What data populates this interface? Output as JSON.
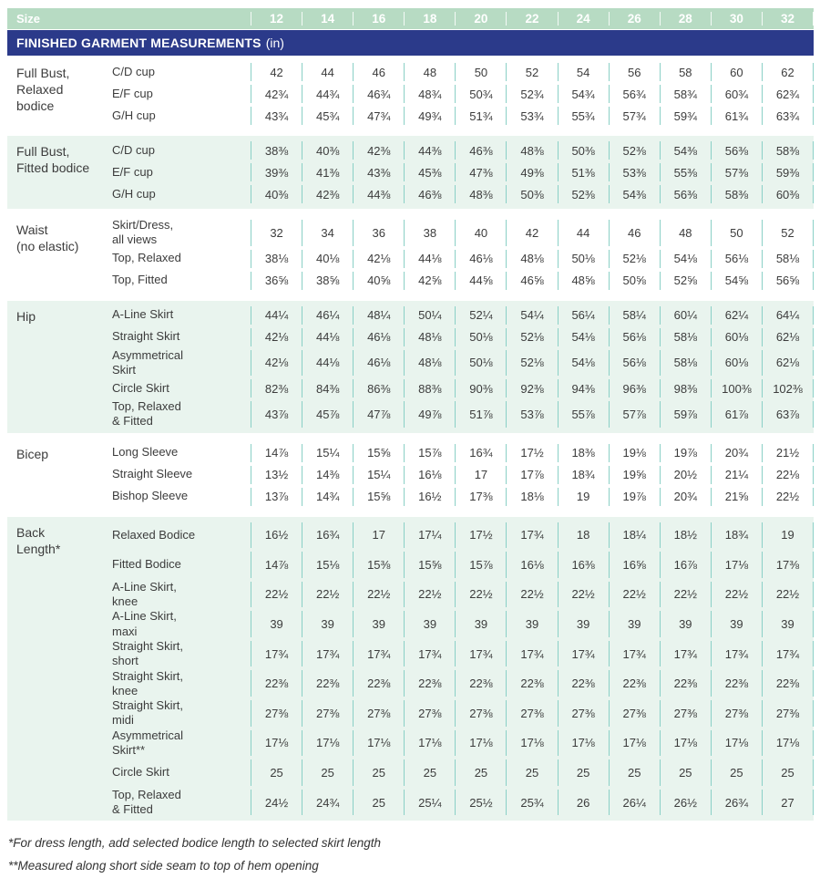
{
  "colors": {
    "header_green": "#b7dbc3",
    "banner_navy": "#2b3a8a",
    "section_mint": "#e9f4ee",
    "divider_teal": "#8ad0c6"
  },
  "size_header": {
    "label": "Size",
    "sizes": [
      "12",
      "14",
      "16",
      "18",
      "20",
      "22",
      "24",
      "26",
      "28",
      "30",
      "32"
    ]
  },
  "banner": {
    "title": "FINISHED GARMENT MEASUREMENTS",
    "unit": "(in)"
  },
  "sections": [
    {
      "label": "Full Bust,\nRelaxed\nbodice",
      "rows": [
        {
          "label": "C/D cup",
          "values": [
            "42",
            "44",
            "46",
            "48",
            "50",
            "52",
            "54",
            "56",
            "58",
            "60",
            "62"
          ]
        },
        {
          "label": "E/F cup",
          "values": [
            "42¾",
            "44¾",
            "46¾",
            "48¾",
            "50¾",
            "52¾",
            "54¾",
            "56¾",
            "58¾",
            "60¾",
            "62¾"
          ]
        },
        {
          "label": "G/H cup",
          "values": [
            "43¾",
            "45¾",
            "47¾",
            "49¾",
            "51¾",
            "53¾",
            "55¾",
            "57¾",
            "59¾",
            "61¾",
            "63¾"
          ]
        }
      ]
    },
    {
      "label": "Full Bust,\nFitted bodice",
      "rows": [
        {
          "label": "C/D cup",
          "values": [
            "38⅜",
            "40⅜",
            "42⅜",
            "44⅜",
            "46⅜",
            "48⅜",
            "50⅜",
            "52⅜",
            "54⅜",
            "56⅜",
            "58⅜"
          ]
        },
        {
          "label": "E/F cup",
          "values": [
            "39⅜",
            "41⅜",
            "43⅜",
            "45⅜",
            "47⅜",
            "49⅜",
            "51⅜",
            "53⅜",
            "55⅜",
            "57⅜",
            "59⅜"
          ]
        },
        {
          "label": "G/H cup",
          "values": [
            "40⅜",
            "42⅜",
            "44⅜",
            "46⅜",
            "48⅜",
            "50⅜",
            "52⅜",
            "54⅜",
            "56⅜",
            "58⅜",
            "60⅜"
          ]
        }
      ]
    },
    {
      "label": "Waist\n(no elastic)",
      "rows": [
        {
          "label": "Skirt/Dress,\nall views",
          "values": [
            "32",
            "34",
            "36",
            "38",
            "40",
            "42",
            "44",
            "46",
            "48",
            "50",
            "52"
          ]
        },
        {
          "label": "Top, Relaxed",
          "values": [
            "38⅛",
            "40⅛",
            "42⅛",
            "44⅛",
            "46⅛",
            "48⅛",
            "50⅛",
            "52⅛",
            "54⅛",
            "56⅛",
            "58⅛"
          ]
        },
        {
          "label": "Top, Fitted",
          "values": [
            "36⅝",
            "38⅝",
            "40⅝",
            "42⅝",
            "44⅝",
            "46⅝",
            "48⅝",
            "50⅝",
            "52⅝",
            "54⅝",
            "56⅝"
          ]
        }
      ]
    },
    {
      "label": "Hip",
      "rows": [
        {
          "label": "A-Line Skirt",
          "values": [
            "44¼",
            "46¼",
            "48¼",
            "50¼",
            "52¼",
            "54¼",
            "56¼",
            "58¼",
            "60¼",
            "62¼",
            "64¼"
          ]
        },
        {
          "label": "Straight Skirt",
          "values": [
            "42⅛",
            "44⅛",
            "46⅛",
            "48⅛",
            "50⅛",
            "52⅛",
            "54⅛",
            "56⅛",
            "58⅛",
            "60⅛",
            "62⅛"
          ]
        },
        {
          "label": "Asymmetrical\nSkirt",
          "values": [
            "42⅛",
            "44⅛",
            "46⅛",
            "48⅛",
            "50⅛",
            "52⅛",
            "54⅛",
            "56⅛",
            "58⅛",
            "60⅛",
            "62⅛"
          ]
        },
        {
          "label": "Circle Skirt",
          "values": [
            "82⅜",
            "84⅜",
            "86⅜",
            "88⅜",
            "90⅜",
            "92⅜",
            "94⅜",
            "96⅜",
            "98⅜",
            "100⅜",
            "102⅜"
          ]
        },
        {
          "label": "Top, Relaxed\n& Fitted",
          "values": [
            "43⅞",
            "45⅞",
            "47⅞",
            "49⅞",
            "51⅞",
            "53⅞",
            "55⅞",
            "57⅞",
            "59⅞",
            "61⅞",
            "63⅞"
          ]
        }
      ]
    },
    {
      "label": "Bicep",
      "rows": [
        {
          "label": "Long Sleeve",
          "values": [
            "14⅞",
            "15¼",
            "15⅝",
            "15⅞",
            "16¾",
            "17½",
            "18⅜",
            "19⅛",
            "19⅞",
            "20¾",
            "21½"
          ]
        },
        {
          "label": "Straight Sleeve",
          "values": [
            "13½",
            "14⅜",
            "15¼",
            "16⅛",
            "17",
            "17⅞",
            "18¾",
            "19⅝",
            "20½",
            "21¼",
            "22⅛"
          ]
        },
        {
          "label": "Bishop Sleeve",
          "values": [
            "13⅞",
            "14¾",
            "15⅝",
            "16½",
            "17⅜",
            "18⅛",
            "19",
            "19⅞",
            "20¾",
            "21⅝",
            "22½"
          ]
        }
      ]
    },
    {
      "label": "Back\nLength*",
      "rows": [
        {
          "label": "Relaxed Bodice",
          "values": [
            "16½",
            "16¾",
            "17",
            "17¼",
            "17½",
            "17¾",
            "18",
            "18¼",
            "18½",
            "18¾",
            "19"
          ]
        },
        {
          "label": "Fitted Bodice",
          "values": [
            "14⅞",
            "15⅛",
            "15⅜",
            "15⅝",
            "15⅞",
            "16⅛",
            "16⅜",
            "16⅝",
            "16⅞",
            "17⅛",
            "17⅜"
          ]
        },
        {
          "label": "A-Line Skirt,\nknee",
          "values": [
            "22½",
            "22½",
            "22½",
            "22½",
            "22½",
            "22½",
            "22½",
            "22½",
            "22½",
            "22½",
            "22½"
          ]
        },
        {
          "label": "A-Line Skirt,\nmaxi",
          "values": [
            "39",
            "39",
            "39",
            "39",
            "39",
            "39",
            "39",
            "39",
            "39",
            "39",
            "39"
          ]
        },
        {
          "label": "Straight Skirt,\nshort",
          "values": [
            "17¾",
            "17¾",
            "17¾",
            "17¾",
            "17¾",
            "17¾",
            "17¾",
            "17¾",
            "17¾",
            "17¾",
            "17¾"
          ]
        },
        {
          "label": "Straight Skirt,\nknee",
          "values": [
            "22⅜",
            "22⅜",
            "22⅜",
            "22⅜",
            "22⅜",
            "22⅜",
            "22⅜",
            "22⅜",
            "22⅜",
            "22⅜",
            "22⅜"
          ]
        },
        {
          "label": "Straight Skirt,\nmidi",
          "values": [
            "27⅜",
            "27⅜",
            "27⅜",
            "27⅜",
            "27⅜",
            "27⅜",
            "27⅜",
            "27⅜",
            "27⅜",
            "27⅜",
            "27⅜"
          ]
        },
        {
          "label": "Asymmetrical\nSkirt**",
          "values": [
            "17⅛",
            "17⅛",
            "17⅛",
            "17⅛",
            "17⅛",
            "17⅛",
            "17⅛",
            "17⅛",
            "17⅛",
            "17⅛",
            "17⅛"
          ]
        },
        {
          "label": "Circle Skirt",
          "values": [
            "25",
            "25",
            "25",
            "25",
            "25",
            "25",
            "25",
            "25",
            "25",
            "25",
            "25"
          ]
        },
        {
          "label": "Top, Relaxed\n& Fitted",
          "values": [
            "24½",
            "24¾",
            "25",
            "25¼",
            "25½",
            "25¾",
            "26",
            "26¼",
            "26½",
            "26¾",
            "27"
          ]
        }
      ]
    }
  ],
  "footnotes": [
    "*For dress length, add selected bodice length to selected skirt length",
    "**Measured along short side seam to top of hem opening"
  ]
}
